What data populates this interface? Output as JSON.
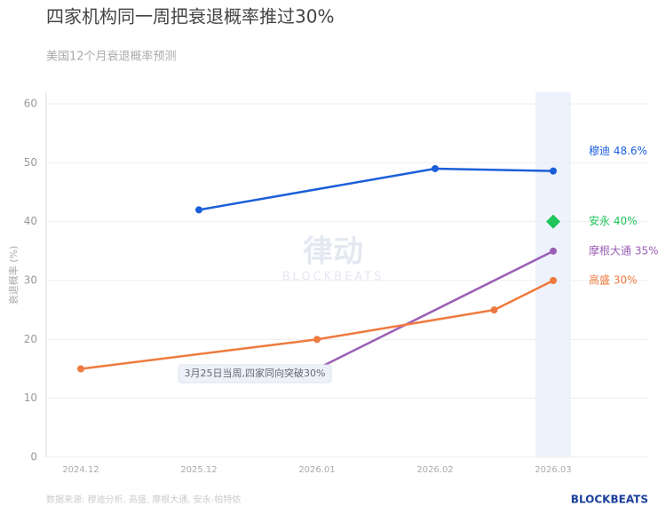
{
  "chart_data": {
    "type": "line",
    "title": "四家机构同一周把衰退概率推过30%",
    "subtitle": "美国12个月衰退概率预测",
    "y_label": "衰退概率 (%)",
    "categories": [
      "2024.12",
      "2025.12",
      "2026.01",
      "2026.02",
      null,
      "2026.03"
    ],
    "series": [
      {
        "name": "穆迪",
        "color": "#1a5fd8",
        "marker": "circle",
        "values": [
          null,
          42,
          null,
          49,
          null,
          48.6
        ],
        "end_label": "穆迪 48.6%"
      },
      {
        "name": "安永",
        "color": "#1fc45a",
        "marker": "diamond",
        "values": [
          null,
          null,
          null,
          null,
          null,
          40
        ],
        "end_label": "安永 40%"
      },
      {
        "name": "摩根大通",
        "color": "#9b5fb5",
        "marker": "circle",
        "values": [
          null,
          null,
          15,
          null,
          null,
          35
        ],
        "end_label": "摩根大通 35%"
      },
      {
        "name": "高盛",
        "color": "#ef7a3f",
        "marker": "circle",
        "values": [
          15,
          null,
          20,
          null,
          25,
          30
        ],
        "end_label": "高盛 30%"
      }
    ],
    "ylim": [
      0,
      60
    ],
    "yticks": [
      0,
      10,
      20,
      30,
      40,
      50,
      60
    ],
    "grid": true,
    "annotation": "3月25日当周,四家同向突破30%",
    "watermark": "律动",
    "watermark_sub": "BLOCKBEATS",
    "source": "数据来源: 穆迪分析, 高盛, 摩根大通, 安永-帕特侬",
    "brand": "BLOCKBEATS"
  }
}
